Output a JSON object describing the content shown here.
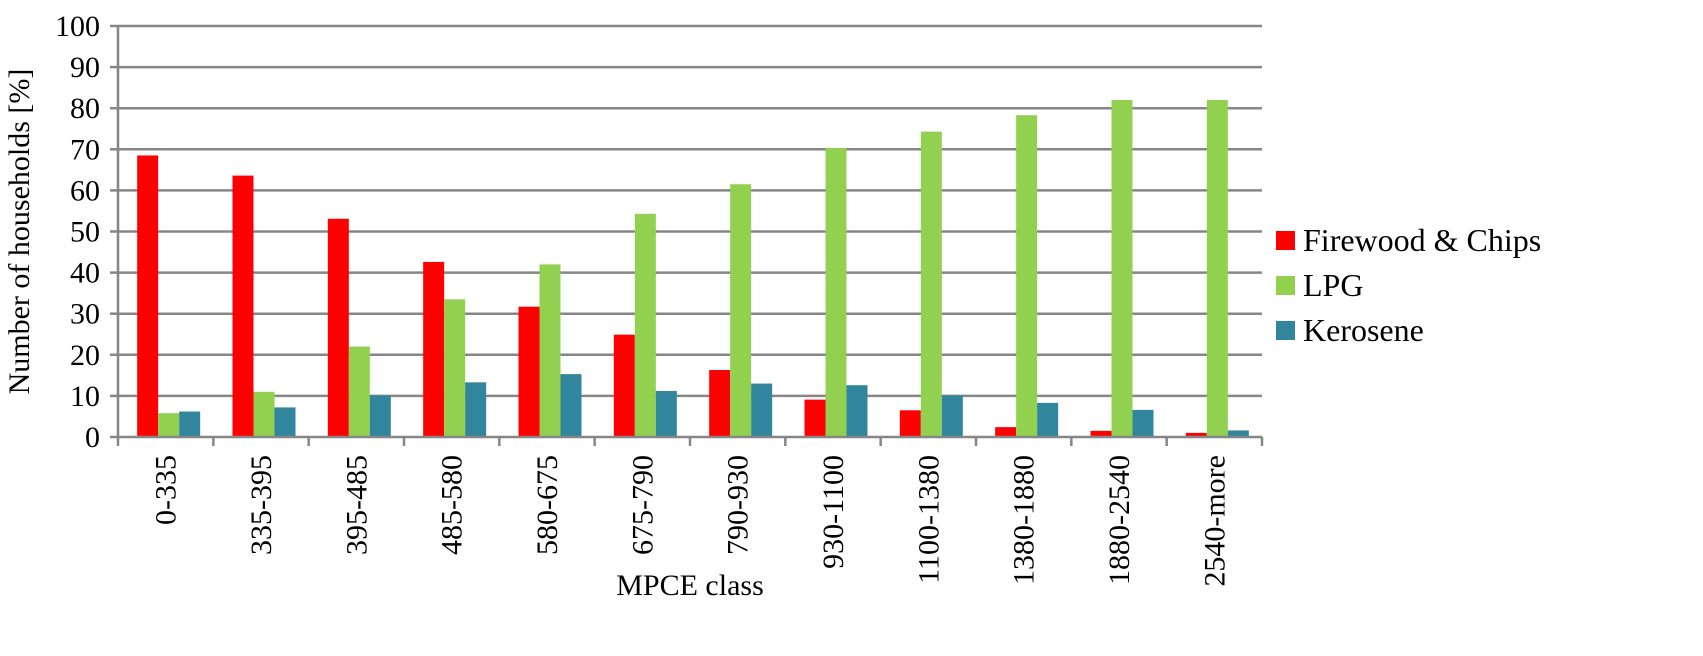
{
  "chart_data": {
    "type": "bar",
    "title": "",
    "xlabel": "MPCE class",
    "ylabel": "Number of households [%]",
    "ylim": [
      0,
      100
    ],
    "yticks": [
      0,
      10,
      20,
      30,
      40,
      50,
      60,
      70,
      80,
      90,
      100
    ],
    "grid": true,
    "legend_position": "right",
    "categories": [
      "0-335",
      "335-395",
      "395-485",
      "485-580",
      "580-675",
      "675-790",
      "790-930",
      "930-1100",
      "1100-1380",
      "1380-1880",
      "1880-2540",
      "2540-more"
    ],
    "series": [
      {
        "name": "Firewood & Chips",
        "color": "#ff0000",
        "values": [
          68.5,
          63.6,
          53.1,
          42.6,
          31.7,
          24.9,
          16.3,
          9.1,
          6.5,
          2.4,
          1.5,
          1.0
        ]
      },
      {
        "name": "LPG",
        "color": "#92d050",
        "values": [
          5.8,
          11.0,
          22.0,
          33.5,
          42.0,
          54.3,
          61.5,
          70.3,
          74.3,
          78.3,
          82.0,
          82.0
        ]
      },
      {
        "name": "Kerosene",
        "color": "#31859c",
        "values": [
          6.2,
          7.2,
          10.1,
          13.3,
          15.3,
          11.2,
          13.0,
          12.6,
          10.1,
          8.3,
          6.6,
          1.6
        ]
      }
    ]
  }
}
